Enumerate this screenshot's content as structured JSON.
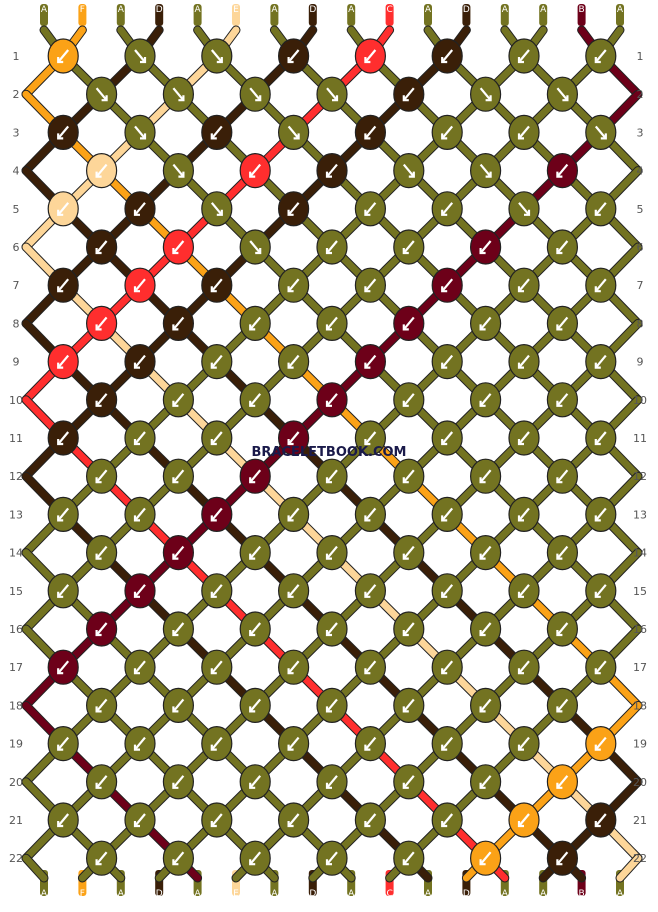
{
  "pattern": {
    "strings": [
      "A",
      "F",
      "A",
      "D",
      "A",
      "E",
      "A",
      "D",
      "A",
      "C",
      "A",
      "D",
      "A",
      "A",
      "B",
      "A"
    ],
    "colors": {
      "A": "#737321",
      "B": "#6d0019",
      "C": "#ff2e2e",
      "D": "#3a1f08",
      "E": "#fdd699",
      "F": "#fba217"
    },
    "row_numbers": [
      "1",
      "2",
      "3",
      "4",
      "5",
      "6",
      "7",
      "8",
      "9",
      "10",
      "11",
      "12",
      "13",
      "14",
      "15",
      "16",
      "17",
      "18",
      "19",
      "20",
      "21",
      "22"
    ],
    "knots": [
      [
        "rl",
        "lr",
        "lr",
        "rl",
        "rl",
        "rl",
        "rl",
        "rl"
      ],
      [
        "lr",
        "lr",
        "lr",
        "lr",
        "rl",
        "lr",
        "lr"
      ],
      [
        "rl",
        "lr",
        "rl",
        "lr",
        "rl",
        "rl",
        "rl",
        "lr"
      ],
      [
        "rl",
        "lr",
        "rl",
        "rl",
        "lr",
        "lr",
        "rl"
      ],
      [
        "rl",
        "rl",
        "lr",
        "rl",
        "rl",
        "rl",
        "lr",
        "rl"
      ],
      [
        "rl",
        "rl",
        "lr",
        "rl",
        "rl",
        "rl",
        "rl"
      ],
      [
        "rl",
        "rl",
        "rl",
        "rl",
        "rl",
        "rl",
        "rl",
        "rl"
      ],
      [
        "rl",
        "rl",
        "rl",
        "rl",
        "rl",
        "rl",
        "rl"
      ],
      [
        "rl",
        "rl",
        "rl",
        "rl",
        "rl",
        "rl",
        "rl",
        "rl"
      ],
      [
        "rl",
        "rl",
        "rl",
        "rl",
        "rl",
        "rl",
        "rl"
      ],
      [
        "rl",
        "rl",
        "rl",
        "rl",
        "rl",
        "rl",
        "rl",
        "rl"
      ],
      [
        "rl",
        "rl",
        "rl",
        "rl",
        "rl",
        "rl",
        "rl"
      ],
      [
        "rl",
        "rl",
        "rl",
        "rl",
        "rl",
        "rl",
        "rl",
        "rl"
      ],
      [
        "rl",
        "rl",
        "rl",
        "rl",
        "rl",
        "rl",
        "rl"
      ],
      [
        "rl",
        "rl",
        "rl",
        "rl",
        "rl",
        "rl",
        "rl",
        "rl"
      ],
      [
        "rl",
        "rl",
        "rl",
        "rl",
        "rl",
        "rl",
        "rl"
      ],
      [
        "rl",
        "rl",
        "rl",
        "rl",
        "rl",
        "rl",
        "rl",
        "rl"
      ],
      [
        "rl",
        "rl",
        "rl",
        "rl",
        "rl",
        "rl",
        "rl"
      ],
      [
        "rl",
        "rl",
        "rl",
        "rl",
        "rl",
        "rl",
        "rl",
        "rl"
      ],
      [
        "rl",
        "rl",
        "rl",
        "rl",
        "rl",
        "rl",
        "rl"
      ],
      [
        "rl",
        "rl",
        "rl",
        "rl",
        "rl",
        "rl",
        "rl",
        "rl"
      ],
      [
        "rl",
        "rl",
        "rl",
        "rl",
        "rl",
        "rl",
        "rl"
      ]
    ],
    "watermark": "BRACELETBOOK.COM"
  }
}
